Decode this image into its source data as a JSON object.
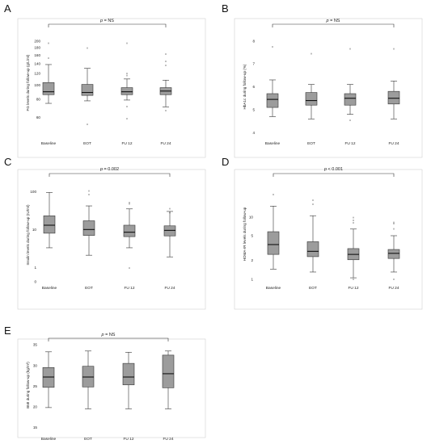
{
  "colors": {
    "box_fill": "#9c9c9c",
    "line": "#333333",
    "frame": "#d0d0d0"
  },
  "chart_data": [
    {
      "type": "boxplot",
      "panel": "A",
      "ylabel": "FG levels during follow-up (g/L/ml)",
      "scale": "log",
      "ylim": [
        50,
        215
      ],
      "ticks": [
        "200",
        "180",
        "160",
        "140",
        "120",
        "100",
        "80",
        "60"
      ],
      "categories": [
        "Baseline",
        "EOT",
        "FU 12",
        "FU 24"
      ],
      "significance": {
        "p_label": "p",
        "text": " = NS"
      },
      "boxes": [
        {
          "min": 75,
          "q1": 86,
          "median": 90,
          "q3": 104,
          "max": 138,
          "outliers": [
            150,
            190
          ]
        },
        {
          "min": 78,
          "q1": 85,
          "median": 89,
          "q3": 101,
          "max": 130,
          "outliers": [
            176,
            53
          ]
        },
        {
          "min": 79,
          "q1": 86,
          "median": 90,
          "q3": 96,
          "max": 110,
          "outliers": [
            118,
            114,
            190,
            70,
            58
          ]
        },
        {
          "min": 71,
          "q1": 86,
          "median": 91,
          "q3": 96,
          "max": 108,
          "outliers": [
            160,
            143,
            134,
            66
          ]
        }
      ]
    },
    {
      "type": "boxplot",
      "panel": "B",
      "ylabel": "HbA1c during follow-up (%)",
      "scale": "linear",
      "ylim": [
        3.8,
        8.2
      ],
      "ticks": [
        "8",
        "7",
        "6",
        "5",
        "4"
      ],
      "categories": [
        "Baseline",
        "EOT",
        "FU 12",
        "FU 24"
      ],
      "significance": {
        "p_label": "p",
        "text": " = NS"
      },
      "boxes": [
        {
          "min": 4.7,
          "q1": 5.1,
          "median": 5.45,
          "q3": 5.7,
          "max": 6.3,
          "outliers": [
            7.7
          ]
        },
        {
          "min": 4.6,
          "q1": 5.2,
          "median": 5.4,
          "q3": 5.75,
          "max": 6.1,
          "outliers": [
            7.4
          ]
        },
        {
          "min": 4.8,
          "q1": 5.2,
          "median": 5.5,
          "q3": 5.7,
          "max": 6.1,
          "outliers": [
            7.6,
            4.5
          ]
        },
        {
          "min": 4.6,
          "q1": 5.25,
          "median": 5.5,
          "q3": 5.8,
          "max": 6.25,
          "outliers": [
            7.6
          ]
        }
      ]
    },
    {
      "type": "boxplot",
      "panel": "C",
      "ylabel": "Insulin levels during follow-up (IU/ml)",
      "scale": "log",
      "ylim": [
        0.4,
        130
      ],
      "ticks": [
        "100",
        "10",
        "1",
        "0"
      ],
      "categories": [
        "Baseline",
        "EOT",
        "FU 12",
        "FU 24"
      ],
      "significance": {
        "p_label": "p",
        "text": " = 0.002"
      },
      "boxes": [
        {
          "min": 3.3,
          "q1": 8,
          "median": 13,
          "q3": 23,
          "max": 95,
          "outliers": []
        },
        {
          "min": 2.1,
          "q1": 7,
          "median": 10,
          "q3": 17,
          "max": 42,
          "outliers": [
            97,
            78
          ]
        },
        {
          "min": 3.3,
          "q1": 6.5,
          "median": 8.5,
          "q3": 13,
          "max": 35,
          "outliers": [
            48,
            45,
            0.9
          ]
        },
        {
          "min": 1.9,
          "q1": 6.8,
          "median": 9.5,
          "q3": 12.5,
          "max": 30,
          "outliers": [
            33,
            26
          ]
        }
      ]
    },
    {
      "type": "boxplot",
      "panel": "D",
      "ylabel": "HOMA-IR levels during follow-up",
      "scale": "log",
      "ylim": [
        0.88,
        32
      ],
      "ticks": [
        "10",
        "5",
        "2",
        "1"
      ],
      "categories": [
        "Baseline",
        "EOT",
        "FU 12",
        "FU 24"
      ],
      "significance": {
        "p_label": "p",
        "text": " < 0.001"
      },
      "boxes": [
        {
          "min": 1.45,
          "q1": 2.5,
          "median": 3.6,
          "q3": 5.8,
          "max": 15,
          "outliers": [
            22
          ]
        },
        {
          "min": 1.3,
          "q1": 2.3,
          "median": 2.8,
          "q3": 4.0,
          "max": 10.5,
          "outliers": [
            18,
            15.5
          ]
        },
        {
          "min": 1.05,
          "q1": 2.05,
          "median": 2.5,
          "q3": 3.1,
          "max": 6.4,
          "outliers": [
            9.5,
            8.5,
            7.8,
            0.95
          ]
        },
        {
          "min": 1.3,
          "q1": 2.15,
          "median": 2.6,
          "q3": 3.0,
          "max": 5.0,
          "outliers": [
            7.9,
            7.5,
            6.2,
            0.95
          ]
        }
      ]
    },
    {
      "type": "boxplot",
      "panel": "E",
      "ylabel": "BMI during follow-up (kg/m²)",
      "scale": "linear",
      "ylim": [
        14.5,
        36
      ],
      "ticks": [
        "35",
        "30",
        "25",
        "20",
        "15"
      ],
      "categories": [
        "Baseline",
        "EOT",
        "FU 12",
        "FU 24"
      ],
      "significance": {
        "p_label": "p",
        "text": " = NS"
      },
      "boxes": [
        {
          "min": 19.8,
          "q1": 24.7,
          "median": 27.2,
          "q3": 29.5,
          "max": 33.3,
          "outliers": []
        },
        {
          "min": 19.5,
          "q1": 24.8,
          "median": 27.2,
          "q3": 29.8,
          "max": 33.5,
          "outliers": []
        },
        {
          "min": 19.5,
          "q1": 25.3,
          "median": 27.2,
          "q3": 30.5,
          "max": 33.2,
          "outliers": []
        },
        {
          "min": 19.5,
          "q1": 24.6,
          "median": 28.0,
          "q3": 32.5,
          "max": 33.5,
          "outliers": []
        }
      ]
    }
  ]
}
